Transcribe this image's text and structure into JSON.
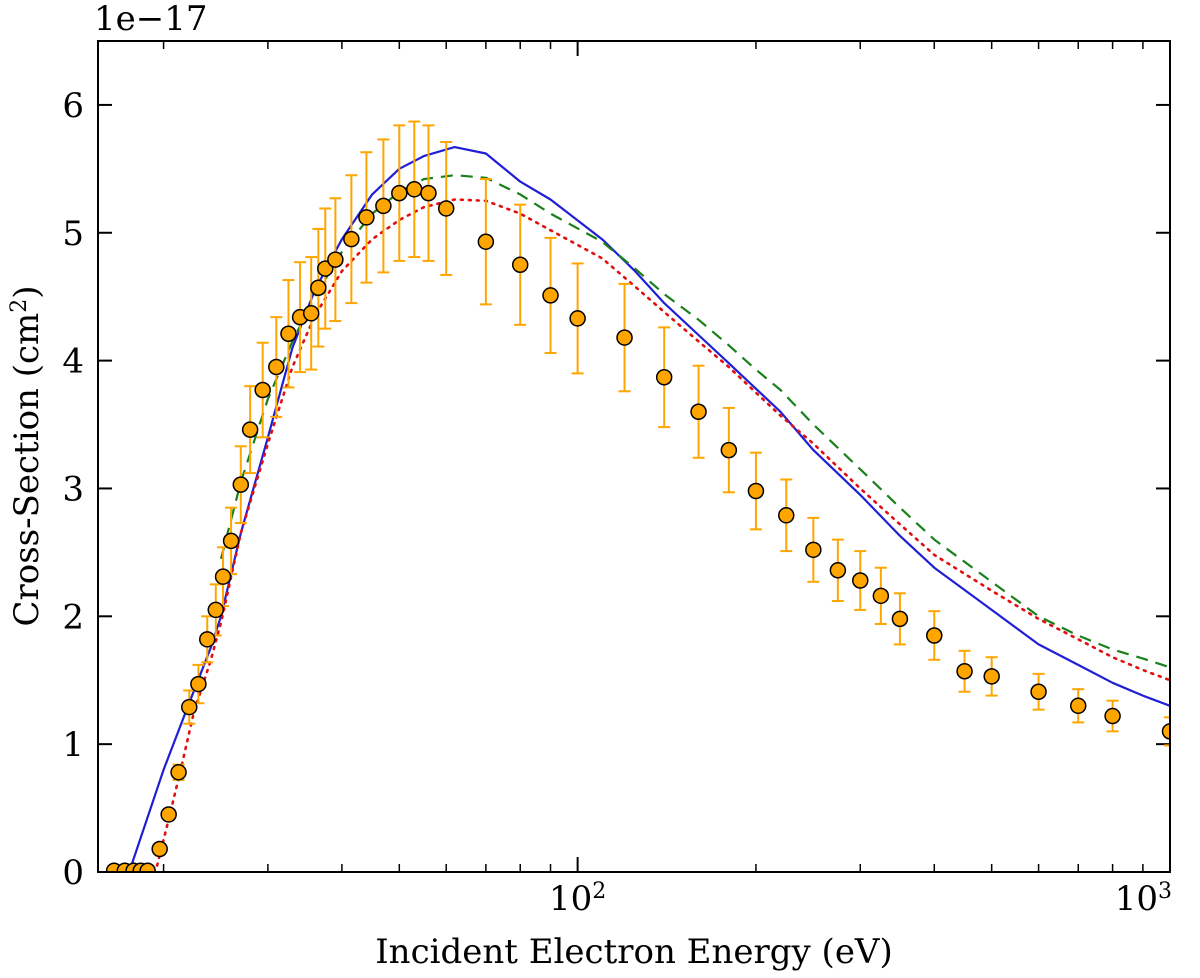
{
  "chart_data": {
    "type": "line",
    "xscale": "log",
    "xlim": [
      15.5,
      1000
    ],
    "ylim": [
      0,
      6.5
    ],
    "y_offset_label": "1e−17",
    "xlabel": "Incident Electron Energy (eV)",
    "ylabel_main": "Cross-Section (cm",
    "ylabel_sup": "2",
    "ylabel_close": ")",
    "y_ticks": [
      0,
      1,
      2,
      3,
      4,
      5,
      6
    ],
    "y_tick_labels": [
      "0",
      "1",
      "2",
      "3",
      "4",
      "5",
      "6"
    ],
    "x_major_ticks": [
      100,
      1000
    ],
    "x_major_labels": [
      "10",
      "10"
    ],
    "x_major_exponents": [
      "2",
      "3"
    ],
    "x_minor_ticks": [
      20,
      30,
      40,
      50,
      60,
      70,
      80,
      90,
      200,
      300,
      400,
      500,
      600,
      700,
      800,
      900
    ],
    "series": [
      {
        "name": "theory-solid",
        "style": "solid",
        "color": "#1f1fd6",
        "x": [
          17.5,
          20,
          22,
          24,
          25,
          27,
          30,
          33,
          36,
          40,
          45,
          50,
          55,
          62,
          70,
          80,
          90,
          110,
          125,
          140,
          160,
          180,
          200,
          220,
          250,
          300,
          350,
          400,
          500,
          600,
          700,
          800,
          900,
          1000
        ],
        "y": [
          0.0,
          0.8,
          1.3,
          1.75,
          2.0,
          2.65,
          3.4,
          4.1,
          4.55,
          4.95,
          5.3,
          5.5,
          5.6,
          5.67,
          5.62,
          5.4,
          5.26,
          4.95,
          4.7,
          4.45,
          4.2,
          3.98,
          3.78,
          3.6,
          3.3,
          2.95,
          2.63,
          2.38,
          2.05,
          1.78,
          1.62,
          1.48,
          1.38,
          1.3
        ]
      },
      {
        "name": "theory-dashed",
        "style": "dashed",
        "color": "#1a801a",
        "x": [
          25,
          27,
          30,
          33,
          36,
          40,
          45,
          50,
          55,
          62,
          70,
          80,
          90,
          110,
          125,
          140,
          160,
          180,
          200,
          220,
          250,
          300,
          350,
          400,
          500,
          600,
          700,
          800,
          900,
          1000
        ],
        "y": [
          2.45,
          3.05,
          3.7,
          4.15,
          4.5,
          4.85,
          5.15,
          5.32,
          5.42,
          5.45,
          5.43,
          5.3,
          5.15,
          4.93,
          4.72,
          4.52,
          4.32,
          4.12,
          3.93,
          3.77,
          3.5,
          3.15,
          2.85,
          2.6,
          2.27,
          2.0,
          1.85,
          1.74,
          1.67,
          1.6
        ]
      },
      {
        "name": "theory-dotted",
        "style": "dotted",
        "color": "#e01010",
        "x": [
          19.5,
          20.5,
          21.5,
          22.5,
          24,
          25,
          27,
          30,
          33,
          36,
          40,
          45,
          50,
          55,
          62,
          70,
          80,
          90,
          110,
          125,
          140,
          160,
          180,
          200,
          220,
          250,
          300,
          350,
          400,
          500,
          600,
          700,
          800,
          900,
          1000
        ],
        "y": [
          0.05,
          0.45,
          0.85,
          1.25,
          1.65,
          1.95,
          2.65,
          3.35,
          3.95,
          4.35,
          4.7,
          4.95,
          5.1,
          5.2,
          5.26,
          5.25,
          5.15,
          5.02,
          4.8,
          4.58,
          4.38,
          4.15,
          3.95,
          3.75,
          3.57,
          3.35,
          3.0,
          2.72,
          2.48,
          2.2,
          1.98,
          1.82,
          1.68,
          1.58,
          1.5
        ]
      }
    ],
    "experiment": {
      "name": "measurements",
      "marker_fill": "#ffa500",
      "marker_edge": "#000000",
      "errorbar_color": "#ffa500",
      "x": [
        16.5,
        17.2,
        17.8,
        18.3,
        18.8,
        19.7,
        20.4,
        21.2,
        22.1,
        22.9,
        23.7,
        24.5,
        25.2,
        26.0,
        27.0,
        28.0,
        29.4,
        31.0,
        32.5,
        34.0,
        35.5,
        36.5,
        37.5,
        39.0,
        41.5,
        44.0,
        47.0,
        50.0,
        53.0,
        56.0,
        60.0,
        70.0,
        80.0,
        90.0,
        100.0,
        120.0,
        140.0,
        160.0,
        180.0,
        200.0,
        225.0,
        250.0,
        275.0,
        300.0,
        325.0,
        350.0,
        400.0,
        450.0,
        500.0,
        600.0,
        700.0,
        800.0,
        1000.0
      ],
      "y": [
        0.01,
        0.01,
        0.01,
        0.01,
        0.01,
        0.18,
        0.45,
        0.78,
        1.29,
        1.47,
        1.82,
        2.05,
        2.31,
        2.59,
        3.03,
        3.46,
        3.77,
        3.95,
        4.21,
        4.34,
        4.37,
        4.57,
        4.72,
        4.79,
        4.95,
        5.12,
        5.21,
        5.31,
        5.34,
        5.31,
        5.19,
        4.93,
        4.75,
        4.51,
        4.33,
        4.18,
        3.87,
        3.6,
        3.3,
        2.98,
        2.79,
        2.52,
        2.36,
        2.28,
        2.16,
        1.98,
        1.85,
        1.57,
        1.53,
        1.41,
        1.3,
        1.22,
        1.1
      ],
      "err": [
        0,
        0,
        0,
        0,
        0,
        0,
        0,
        0.06,
        0.13,
        0.15,
        0.18,
        0.2,
        0.23,
        0.26,
        0.3,
        0.34,
        0.37,
        0.39,
        0.42,
        0.43,
        0.44,
        0.46,
        0.47,
        0.48,
        0.5,
        0.51,
        0.52,
        0.53,
        0.53,
        0.53,
        0.52,
        0.49,
        0.47,
        0.45,
        0.43,
        0.42,
        0.39,
        0.36,
        0.33,
        0.3,
        0.28,
        0.25,
        0.24,
        0.23,
        0.22,
        0.2,
        0.19,
        0.16,
        0.15,
        0.14,
        0.13,
        0.12,
        0.11
      ]
    }
  }
}
